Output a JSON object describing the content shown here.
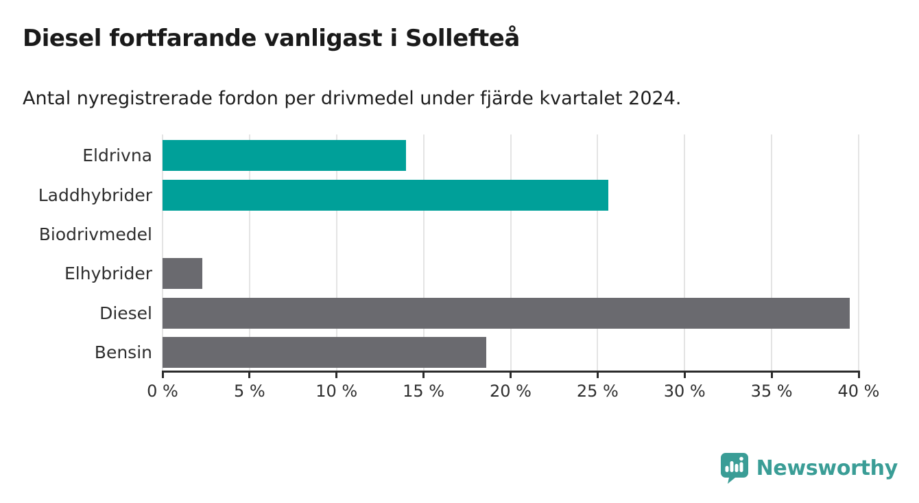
{
  "chart": {
    "title": "Diesel fortfarande vanligast i Sollefteå",
    "subtitle": "Antal nyregistrerade fordon per drivmedel under fjärde kvartalet 2024."
  },
  "chart_data": {
    "type": "bar",
    "orientation": "horizontal",
    "title": "Diesel fortfarande vanligast i Sollefteå",
    "subtitle": "Antal nyregistrerade fordon per drivmedel under fjärde kvartalet 2024.",
    "categories": [
      "Eldrivna",
      "Laddhybrider",
      "Biodrivmedel",
      "Elhybrider",
      "Diesel",
      "Bensin"
    ],
    "values": [
      14.0,
      25.6,
      0,
      2.3,
      39.5,
      18.6
    ],
    "unit": "%",
    "xlim": [
      0,
      40
    ],
    "xticks": [
      0,
      5,
      10,
      15,
      20,
      25,
      30,
      35,
      40
    ],
    "xtick_labels": [
      "0 %",
      "5 %",
      "10 %",
      "15 %",
      "20 %",
      "25 %",
      "30 %",
      "35 %",
      "40 %"
    ],
    "bar_colors": [
      "#00a099",
      "#00a099",
      "#00a099",
      "#6a6a6f",
      "#6a6a6f",
      "#6a6a6f"
    ],
    "grid": true,
    "legend": "none"
  },
  "colors": {
    "teal_bar": "#00a099",
    "gray_bar": "#6a6a6f",
    "gridline": "#e4e4e4",
    "axis": "#2b2b2b",
    "text": "#2e2e2e",
    "logo_teal": "#3a9d96"
  },
  "branding": {
    "logo_text": "Newsworthy"
  }
}
